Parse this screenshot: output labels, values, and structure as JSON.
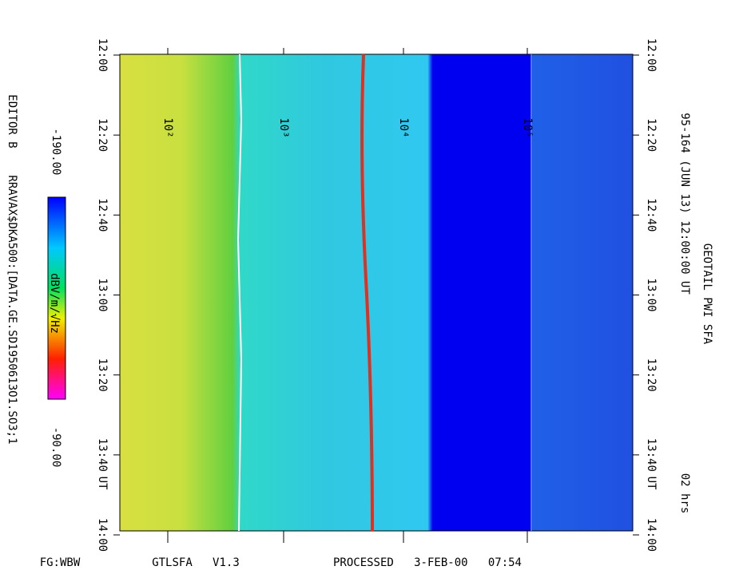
{
  "header": {
    "title": "GEOTAIL PWI SFA",
    "subtitle": "95-164 (JUN 13) 12:00:00 UT",
    "duration": "02 hrs"
  },
  "side": {
    "editor": "EDITOR B",
    "file": "RRAVAX$DKA500:[DATA.GE.SD1950613O1.SO3;1"
  },
  "colorbar": {
    "min_label": "-190.00",
    "unit": "dBV/m/√Hz",
    "max_label": "-90.00"
  },
  "freq_ticks": [
    "10²",
    "10³",
    "10⁴",
    "10⁵"
  ],
  "time_ticks": [
    "12:00",
    "12:20",
    "12:40",
    "13:00",
    "13:20",
    "13:40",
    "14:00"
  ],
  "time_unit": "UT",
  "footer": {
    "left": "FG:WBW",
    "middle": "GTLSFA   V1.3",
    "right": "PROCESSED   3-FEB-00   07:54"
  }
}
